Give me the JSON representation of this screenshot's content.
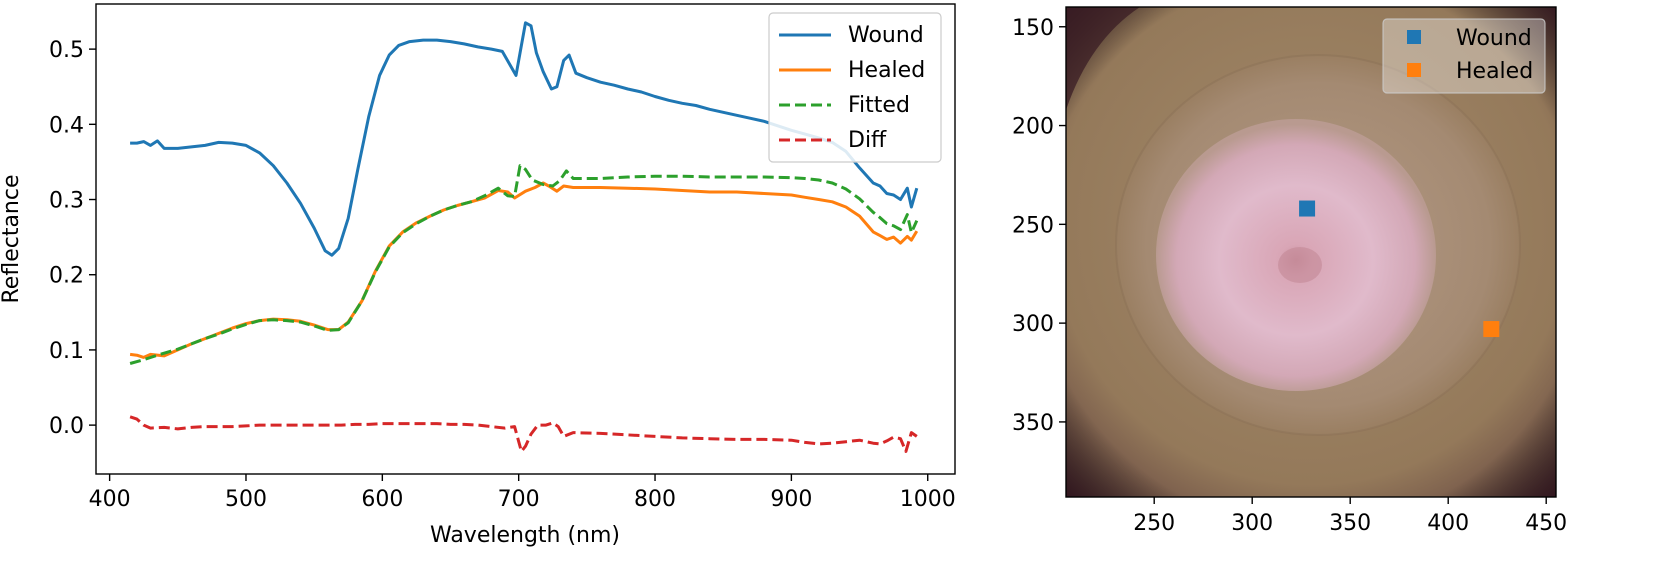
{
  "chart_data": [
    {
      "type": "line",
      "xlabel": "Wavelength (nm)",
      "ylabel": "Reflectance",
      "xlim": [
        390,
        1020
      ],
      "ylim": [
        -0.065,
        0.56
      ],
      "xticks": [
        400,
        500,
        600,
        700,
        800,
        900,
        1000
      ],
      "yticks": [
        0.0,
        0.1,
        0.2,
        0.3,
        0.4,
        0.5
      ],
      "xtick_labels": [
        "400",
        "500",
        "600",
        "700",
        "800",
        "900",
        "1000"
      ],
      "ytick_labels": [
        "0.0",
        "0.1",
        "0.2",
        "0.3",
        "0.4",
        "0.5"
      ],
      "grid": false,
      "legend_position": "top-right",
      "series": [
        {
          "name": "Wound",
          "color": "#1f77b4",
          "style": "solid",
          "points": [
            [
              415,
              0.375
            ],
            [
              420,
              0.375
            ],
            [
              425,
              0.377
            ],
            [
              430,
              0.372
            ],
            [
              435,
              0.378
            ],
            [
              440,
              0.368
            ],
            [
              450,
              0.368
            ],
            [
              460,
              0.37
            ],
            [
              470,
              0.372
            ],
            [
              480,
              0.376
            ],
            [
              490,
              0.375
            ],
            [
              500,
              0.372
            ],
            [
              510,
              0.362
            ],
            [
              520,
              0.345
            ],
            [
              530,
              0.322
            ],
            [
              540,
              0.295
            ],
            [
              550,
              0.262
            ],
            [
              558,
              0.232
            ],
            [
              563,
              0.226
            ],
            [
              568,
              0.235
            ],
            [
              575,
              0.275
            ],
            [
              582,
              0.34
            ],
            [
              590,
              0.41
            ],
            [
              598,
              0.465
            ],
            [
              605,
              0.492
            ],
            [
              612,
              0.505
            ],
            [
              620,
              0.51
            ],
            [
              630,
              0.512
            ],
            [
              640,
              0.512
            ],
            [
              650,
              0.51
            ],
            [
              660,
              0.507
            ],
            [
              670,
              0.503
            ],
            [
              680,
              0.5
            ],
            [
              688,
              0.497
            ],
            [
              694,
              0.478
            ],
            [
              698,
              0.465
            ],
            [
              702,
              0.505
            ],
            [
              705,
              0.535
            ],
            [
              709,
              0.531
            ],
            [
              713,
              0.495
            ],
            [
              718,
              0.47
            ],
            [
              724,
              0.447
            ],
            [
              728,
              0.45
            ],
            [
              733,
              0.485
            ],
            [
              737,
              0.492
            ],
            [
              742,
              0.468
            ],
            [
              750,
              0.462
            ],
            [
              760,
              0.456
            ],
            [
              770,
              0.452
            ],
            [
              780,
              0.447
            ],
            [
              790,
              0.443
            ],
            [
              800,
              0.437
            ],
            [
              810,
              0.432
            ],
            [
              820,
              0.428
            ],
            [
              830,
              0.425
            ],
            [
              840,
              0.42
            ],
            [
              850,
              0.416
            ],
            [
              860,
              0.412
            ],
            [
              870,
              0.408
            ],
            [
              880,
              0.404
            ],
            [
              890,
              0.398
            ],
            [
              900,
              0.392
            ],
            [
              910,
              0.387
            ],
            [
              920,
              0.382
            ],
            [
              930,
              0.376
            ],
            [
              940,
              0.364
            ],
            [
              950,
              0.342
            ],
            [
              960,
              0.322
            ],
            [
              965,
              0.318
            ],
            [
              970,
              0.308
            ],
            [
              975,
              0.306
            ],
            [
              980,
              0.3
            ],
            [
              985,
              0.315
            ],
            [
              988,
              0.29
            ],
            [
              992,
              0.315
            ]
          ]
        },
        {
          "name": "Healed",
          "color": "#ff7f0e",
          "style": "solid",
          "points": [
            [
              415,
              0.094
            ],
            [
              420,
              0.093
            ],
            [
              425,
              0.09
            ],
            [
              430,
              0.094
            ],
            [
              440,
              0.092
            ],
            [
              450,
              0.1
            ],
            [
              460,
              0.108
            ],
            [
              470,
              0.115
            ],
            [
              480,
              0.122
            ],
            [
              490,
              0.129
            ],
            [
              500,
              0.135
            ],
            [
              510,
              0.139
            ],
            [
              520,
              0.141
            ],
            [
              530,
              0.14
            ],
            [
              540,
              0.138
            ],
            [
              550,
              0.133
            ],
            [
              560,
              0.127
            ],
            [
              568,
              0.127
            ],
            [
              575,
              0.137
            ],
            [
              585,
              0.165
            ],
            [
              595,
              0.205
            ],
            [
              605,
              0.238
            ],
            [
              615,
              0.257
            ],
            [
              625,
              0.269
            ],
            [
              635,
              0.278
            ],
            [
              645,
              0.286
            ],
            [
              655,
              0.292
            ],
            [
              665,
              0.297
            ],
            [
              675,
              0.302
            ],
            [
              685,
              0.312
            ],
            [
              692,
              0.31
            ],
            [
              697,
              0.302
            ],
            [
              705,
              0.311
            ],
            [
              712,
              0.316
            ],
            [
              718,
              0.322
            ],
            [
              722,
              0.318
            ],
            [
              728,
              0.311
            ],
            [
              733,
              0.318
            ],
            [
              740,
              0.316
            ],
            [
              760,
              0.316
            ],
            [
              780,
              0.315
            ],
            [
              800,
              0.314
            ],
            [
              820,
              0.312
            ],
            [
              840,
              0.31
            ],
            [
              860,
              0.31
            ],
            [
              880,
              0.308
            ],
            [
              900,
              0.306
            ],
            [
              910,
              0.303
            ],
            [
              920,
              0.3
            ],
            [
              930,
              0.297
            ],
            [
              940,
              0.29
            ],
            [
              950,
              0.278
            ],
            [
              960,
              0.257
            ],
            [
              965,
              0.252
            ],
            [
              970,
              0.247
            ],
            [
              975,
              0.25
            ],
            [
              980,
              0.242
            ],
            [
              985,
              0.251
            ],
            [
              988,
              0.246
            ],
            [
              992,
              0.258
            ]
          ]
        },
        {
          "name": "Fitted",
          "color": "#2ca02c",
          "style": "dashed",
          "points": [
            [
              415,
              0.082
            ],
            [
              425,
              0.087
            ],
            [
              435,
              0.093
            ],
            [
              450,
              0.101
            ],
            [
              460,
              0.108
            ],
            [
              470,
              0.115
            ],
            [
              480,
              0.121
            ],
            [
              490,
              0.128
            ],
            [
              500,
              0.134
            ],
            [
              510,
              0.139
            ],
            [
              520,
              0.14
            ],
            [
              530,
              0.139
            ],
            [
              540,
              0.137
            ],
            [
              550,
              0.132
            ],
            [
              560,
              0.126
            ],
            [
              568,
              0.127
            ],
            [
              575,
              0.136
            ],
            [
              585,
              0.165
            ],
            [
              595,
              0.204
            ],
            [
              605,
              0.237
            ],
            [
              615,
              0.256
            ],
            [
              625,
              0.268
            ],
            [
              635,
              0.278
            ],
            [
              645,
              0.286
            ],
            [
              655,
              0.292
            ],
            [
              665,
              0.297
            ],
            [
              675,
              0.305
            ],
            [
              685,
              0.315
            ],
            [
              692,
              0.305
            ],
            [
              697,
              0.304
            ],
            [
              701,
              0.345
            ],
            [
              705,
              0.34
            ],
            [
              710,
              0.326
            ],
            [
              718,
              0.32
            ],
            [
              725,
              0.318
            ],
            [
              730,
              0.325
            ],
            [
              735,
              0.338
            ],
            [
              740,
              0.328
            ],
            [
              760,
              0.328
            ],
            [
              780,
              0.33
            ],
            [
              800,
              0.331
            ],
            [
              820,
              0.331
            ],
            [
              840,
              0.33
            ],
            [
              860,
              0.33
            ],
            [
              880,
              0.33
            ],
            [
              900,
              0.329
            ],
            [
              910,
              0.328
            ],
            [
              920,
              0.326
            ],
            [
              930,
              0.322
            ],
            [
              940,
              0.314
            ],
            [
              950,
              0.301
            ],
            [
              960,
              0.283
            ],
            [
              965,
              0.276
            ],
            [
              970,
              0.268
            ],
            [
              975,
              0.265
            ],
            [
              980,
              0.26
            ],
            [
              985,
              0.28
            ],
            [
              988,
              0.256
            ],
            [
              992,
              0.272
            ]
          ]
        },
        {
          "name": "Diff",
          "color": "#d62728",
          "style": "dashed",
          "points": [
            [
              415,
              0.011
            ],
            [
              420,
              0.008
            ],
            [
              425,
              0.0
            ],
            [
              430,
              -0.004
            ],
            [
              440,
              -0.003
            ],
            [
              450,
              -0.005
            ],
            [
              460,
              -0.003
            ],
            [
              470,
              -0.002
            ],
            [
              480,
              -0.002
            ],
            [
              490,
              -0.002
            ],
            [
              500,
              -0.001
            ],
            [
              510,
              0.0
            ],
            [
              520,
              0.0
            ],
            [
              530,
              0.0
            ],
            [
              540,
              0.0
            ],
            [
              550,
              0.0
            ],
            [
              560,
              0.0
            ],
            [
              570,
              0.0
            ],
            [
              580,
              0.001
            ],
            [
              590,
              0.001
            ],
            [
              600,
              0.002
            ],
            [
              610,
              0.002
            ],
            [
              620,
              0.002
            ],
            [
              630,
              0.002
            ],
            [
              640,
              0.002
            ],
            [
              650,
              0.001
            ],
            [
              660,
              0.001
            ],
            [
              670,
              0.0
            ],
            [
              680,
              -0.002
            ],
            [
              690,
              -0.004
            ],
            [
              697,
              -0.002
            ],
            [
              702,
              -0.035
            ],
            [
              705,
              -0.028
            ],
            [
              709,
              -0.012
            ],
            [
              714,
              0.0
            ],
            [
              720,
              0.0
            ],
            [
              725,
              0.003
            ],
            [
              729,
              -0.002
            ],
            [
              733,
              -0.015
            ],
            [
              740,
              -0.01
            ],
            [
              760,
              -0.011
            ],
            [
              780,
              -0.013
            ],
            [
              800,
              -0.015
            ],
            [
              820,
              -0.017
            ],
            [
              840,
              -0.018
            ],
            [
              860,
              -0.019
            ],
            [
              880,
              -0.019
            ],
            [
              900,
              -0.02
            ],
            [
              910,
              -0.023
            ],
            [
              920,
              -0.025
            ],
            [
              930,
              -0.024
            ],
            [
              940,
              -0.022
            ],
            [
              950,
              -0.02
            ],
            [
              960,
              -0.024
            ],
            [
              965,
              -0.025
            ],
            [
              970,
              -0.021
            ],
            [
              975,
              -0.016
            ],
            [
              980,
              -0.018
            ],
            [
              984,
              -0.035
            ],
            [
              988,
              -0.01
            ],
            [
              992,
              -0.015
            ]
          ]
        }
      ]
    },
    {
      "type": "image",
      "xlim": [
        205,
        455
      ],
      "ylim": [
        388,
        140
      ],
      "xticks": [
        250,
        300,
        350,
        400,
        450
      ],
      "yticks": [
        150,
        200,
        250,
        300,
        350
      ],
      "xtick_labels": [
        "250",
        "300",
        "350",
        "400",
        "450"
      ],
      "ytick_labels": [
        "150",
        "200",
        "250",
        "300",
        "350"
      ],
      "legend_position": "top-right",
      "markers": [
        {
          "name": "Wound",
          "color": "#1f77b4",
          "x": 328,
          "y": 242
        },
        {
          "name": "Healed",
          "color": "#ff7f0e",
          "x": 422,
          "y": 303
        }
      ],
      "image_colors": {
        "skin": "#9a8060",
        "wound_ring": "#b29a86",
        "wound_center": "#dbb2c7",
        "corner_shadow": "#3a1c24"
      }
    }
  ]
}
